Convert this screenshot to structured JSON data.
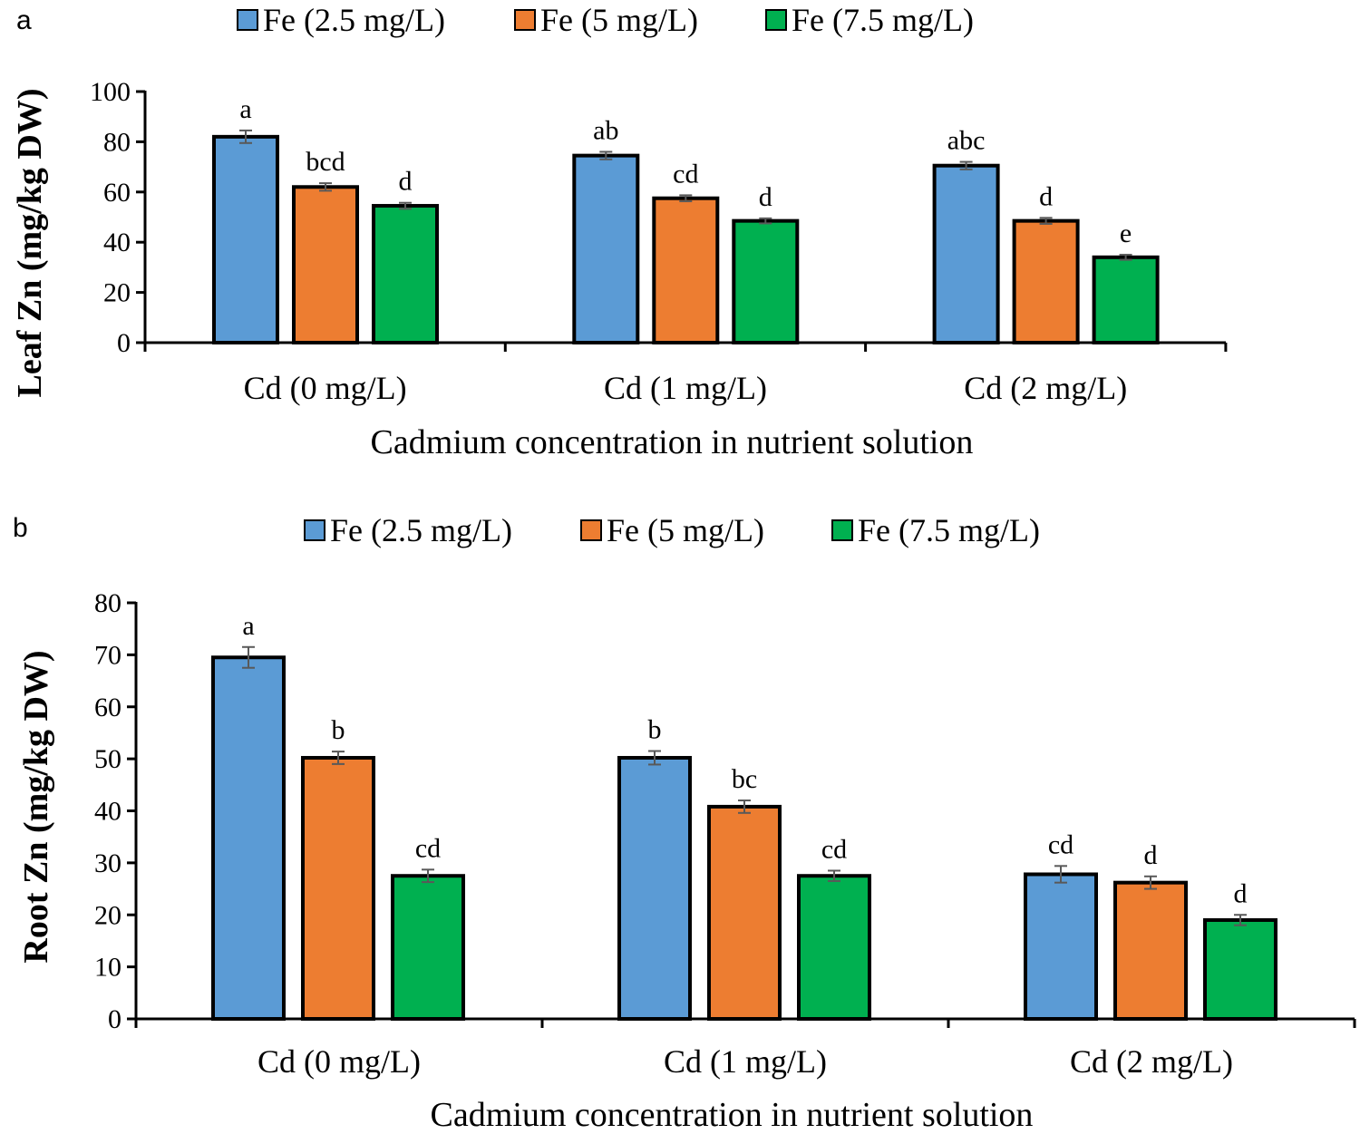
{
  "colors": {
    "s1": "#5b9bd5",
    "s2": "#ed7d31",
    "s3": "#00b050",
    "axis": "#000000",
    "error": "#595959"
  },
  "chart_data": [
    {
      "panel": "a",
      "type": "bar",
      "categories": [
        "Cd (0 mg/L)",
        "Cd (1 mg/L)",
        "Cd (2 mg/L)"
      ],
      "series": [
        {
          "name": "Fe (2.5 mg/L)",
          "values": [
            82,
            74.5,
            70.5
          ],
          "errors": [
            2.5,
            1.5,
            1.5
          ],
          "letters": [
            "a",
            "ab",
            "abc"
          ]
        },
        {
          "name": "Fe (5 mg/L)",
          "values": [
            62,
            57.5,
            48.5
          ],
          "errors": [
            1.5,
            1.2,
            1.2
          ],
          "letters": [
            "bcd",
            "cd",
            "d"
          ]
        },
        {
          "name": "Fe (7.5 mg/L)",
          "values": [
            54.5,
            48.5,
            34
          ],
          "errors": [
            1.2,
            1.0,
            1.0
          ],
          "letters": [
            "d",
            "d",
            "e"
          ]
        }
      ],
      "ylim": [
        0,
        100
      ],
      "yticks": [
        0,
        20,
        40,
        60,
        80,
        100
      ],
      "xlabel": "Cadmium concentration in nutrient solution",
      "ylabel": "Leaf Zn (mg/kg DW)",
      "legend_position": "top"
    },
    {
      "panel": "b",
      "type": "bar",
      "categories": [
        "Cd (0 mg/L)",
        "Cd (1 mg/L)",
        "Cd (2 mg/L)"
      ],
      "series": [
        {
          "name": "Fe (2.5 mg/L)",
          "values": [
            69.5,
            50.2,
            27.8
          ],
          "errors": [
            2.0,
            1.3,
            1.6
          ],
          "letters": [
            "a",
            "b",
            "cd"
          ]
        },
        {
          "name": "Fe (5 mg/L)",
          "values": [
            50.2,
            40.8,
            26.2
          ],
          "errors": [
            1.2,
            1.2,
            1.2
          ],
          "letters": [
            "b",
            "bc",
            "d"
          ]
        },
        {
          "name": "Fe (7.5 mg/L)",
          "values": [
            27.5,
            27.5,
            19.0
          ],
          "errors": [
            1.2,
            1.0,
            1.0
          ],
          "letters": [
            "cd",
            "cd",
            "d"
          ]
        }
      ],
      "ylim": [
        0,
        80
      ],
      "yticks": [
        0,
        10,
        20,
        30,
        40,
        50,
        60,
        70,
        80
      ],
      "xlabel": "Cadmium concentration in nutrient solution",
      "ylabel": "Root Zn (mg/kg DW)",
      "legend_position": "top"
    }
  ]
}
